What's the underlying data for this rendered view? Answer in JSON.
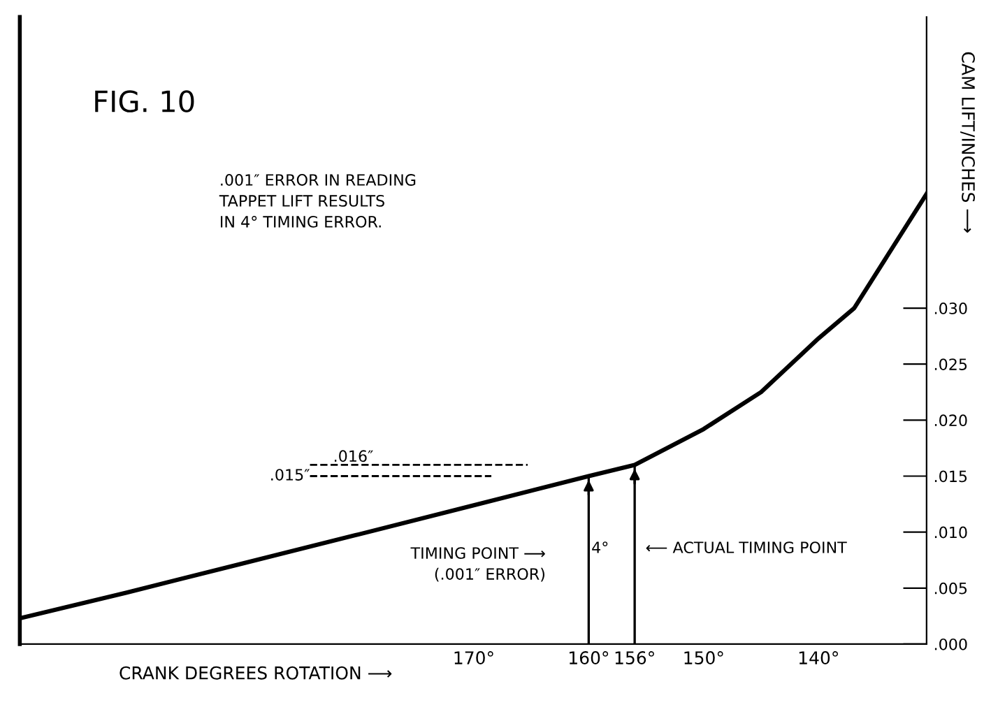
{
  "chart_data": {
    "type": "line",
    "title": "FIG. 10",
    "xlabel": "CRANK DEGREES ROTATION ⟶",
    "ylabel": "CAM LIFT/INCHES ⟶",
    "x": [
      209.5,
      200.2,
      190.1,
      180,
      170,
      160,
      156,
      150,
      145,
      140,
      136.9,
      130.6
    ],
    "series": [
      {
        "color": "#000000",
        "values": [
          0.0023,
          0.0046,
          0.0072,
          0.0098,
          0.0124,
          0.015,
          0.016,
          0.0192,
          0.0225,
          0.0273,
          0.03,
          0.0402
        ]
      }
    ],
    "xlim": [
      209.5,
      130.6
    ],
    "xticks": [
      {
        "value": 170,
        "label": "170°"
      },
      {
        "value": 160,
        "label": "160°"
      },
      {
        "value": 156,
        "label": "156°"
      },
      {
        "value": 150,
        "label": "150°"
      },
      {
        "value": 140,
        "label": "140°"
      }
    ],
    "ylim": [
      0,
      0.056
    ],
    "yticks": [
      {
        "value": 0,
        "label": ".000"
      },
      {
        "value": 0.005,
        "label": ".005"
      },
      {
        "value": 0.01,
        "label": ".010"
      },
      {
        "value": 0.015,
        "label": ".015"
      },
      {
        "value": 0.02,
        "label": ".020"
      },
      {
        "value": 0.025,
        "label": ".025"
      },
      {
        "value": 0.03,
        "label": ".030"
      }
    ],
    "ref_lines": [
      {
        "axis": "y",
        "value": 0.015,
        "label": ".015″",
        "line_style": "dashed",
        "color": "#000000"
      },
      {
        "axis": "y",
        "value": 0.016,
        "label": ".016″",
        "line_style": "dashed",
        "color": "#000000"
      },
      {
        "axis": "x",
        "value": 160,
        "label": null,
        "line_style": "solid",
        "color": "#000000"
      },
      {
        "axis": "x",
        "value": 156,
        "label": null,
        "line_style": "solid",
        "color": "#000000"
      }
    ],
    "annotations": [
      ".001″ ERROR IN READING\nTAPPET LIFT RESULTS\nIN 4° TIMING ERROR.",
      "TIMING POINT ⟶\n(.001″ ERROR)",
      "4°",
      "⟵ ACTUAL TIMING POINT"
    ],
    "grid": false,
    "marker": "none",
    "line_style": "solid"
  }
}
